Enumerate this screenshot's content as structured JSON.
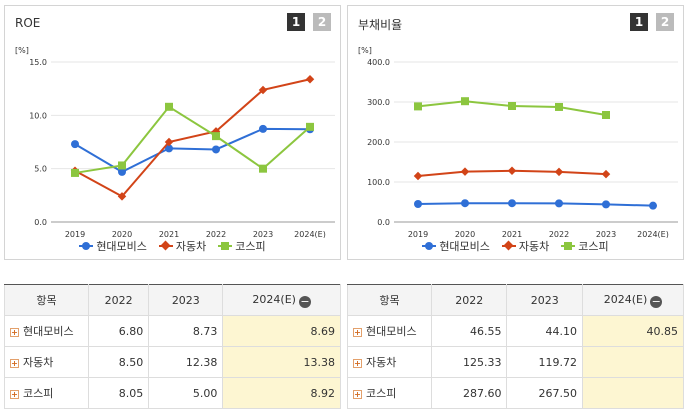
{
  "roe": {
    "title": "ROE",
    "pages": [
      "1",
      "2"
    ],
    "unit": "[%]",
    "chart_data": {
      "type": "line",
      "title": "ROE",
      "ylabel": "[%]",
      "categories": [
        "2019",
        "2020",
        "2021",
        "2022",
        "2023",
        "2024(E)"
      ],
      "ylim": [
        0,
        15
      ],
      "yticks": [
        "0.0",
        "5.0",
        "10.0",
        "15.0"
      ],
      "series": [
        {
          "name": "현대모비스",
          "color": "#2f6fd6",
          "marker": "circle",
          "values": [
            7.3,
            4.7,
            6.9,
            6.8,
            8.73,
            8.69
          ]
        },
        {
          "name": "자동차",
          "color": "#d24418",
          "marker": "diamond",
          "values": [
            4.8,
            2.4,
            7.5,
            8.5,
            12.38,
            13.38
          ]
        },
        {
          "name": "코스피",
          "color": "#8cc63f",
          "marker": "square",
          "values": [
            4.6,
            5.3,
            10.8,
            8.05,
            5.0,
            8.92
          ]
        }
      ]
    },
    "table": {
      "headers": [
        "항목",
        "2022",
        "2023",
        "2024(E)"
      ],
      "rows": [
        {
          "name": "현대모비스",
          "values": [
            "6.80",
            "8.73",
            "8.69"
          ]
        },
        {
          "name": "자동차",
          "values": [
            "8.50",
            "12.38",
            "13.38"
          ]
        },
        {
          "name": "코스피",
          "values": [
            "8.05",
            "5.00",
            "8.92"
          ]
        }
      ]
    }
  },
  "debt": {
    "title": "부채비율",
    "pages": [
      "1",
      "2"
    ],
    "unit": "[%]",
    "chart_data": {
      "type": "line",
      "title": "부채비율",
      "ylabel": "[%]",
      "categories": [
        "2019",
        "2020",
        "2021",
        "2022",
        "2023",
        "2024(E)"
      ],
      "ylim": [
        0,
        400
      ],
      "yticks": [
        "0.0",
        "100.0",
        "200.0",
        "300.0",
        "400.0"
      ],
      "series": [
        {
          "name": "현대모비스",
          "color": "#2f6fd6",
          "marker": "circle",
          "values": [
            45,
            47,
            47,
            46.55,
            44.1,
            40.85
          ]
        },
        {
          "name": "자동차",
          "color": "#d24418",
          "marker": "diamond",
          "values": [
            115,
            126,
            128,
            125.33,
            119.72,
            null
          ]
        },
        {
          "name": "코스피",
          "color": "#8cc63f",
          "marker": "square",
          "values": [
            289,
            302,
            290,
            287.6,
            267.5,
            null
          ]
        }
      ]
    },
    "table": {
      "headers": [
        "항목",
        "2022",
        "2023",
        "2024(E)"
      ],
      "rows": [
        {
          "name": "현대모비스",
          "values": [
            "46.55",
            "44.10",
            "40.85"
          ]
        },
        {
          "name": "자동차",
          "values": [
            "125.33",
            "119.72",
            ""
          ]
        },
        {
          "name": "코스피",
          "values": [
            "287.60",
            "267.50",
            ""
          ]
        }
      ]
    }
  },
  "icons": {
    "expand": "plus-icon",
    "collapse": "minus-icon"
  },
  "collapse_symbol": "−",
  "expand_symbol": "+"
}
